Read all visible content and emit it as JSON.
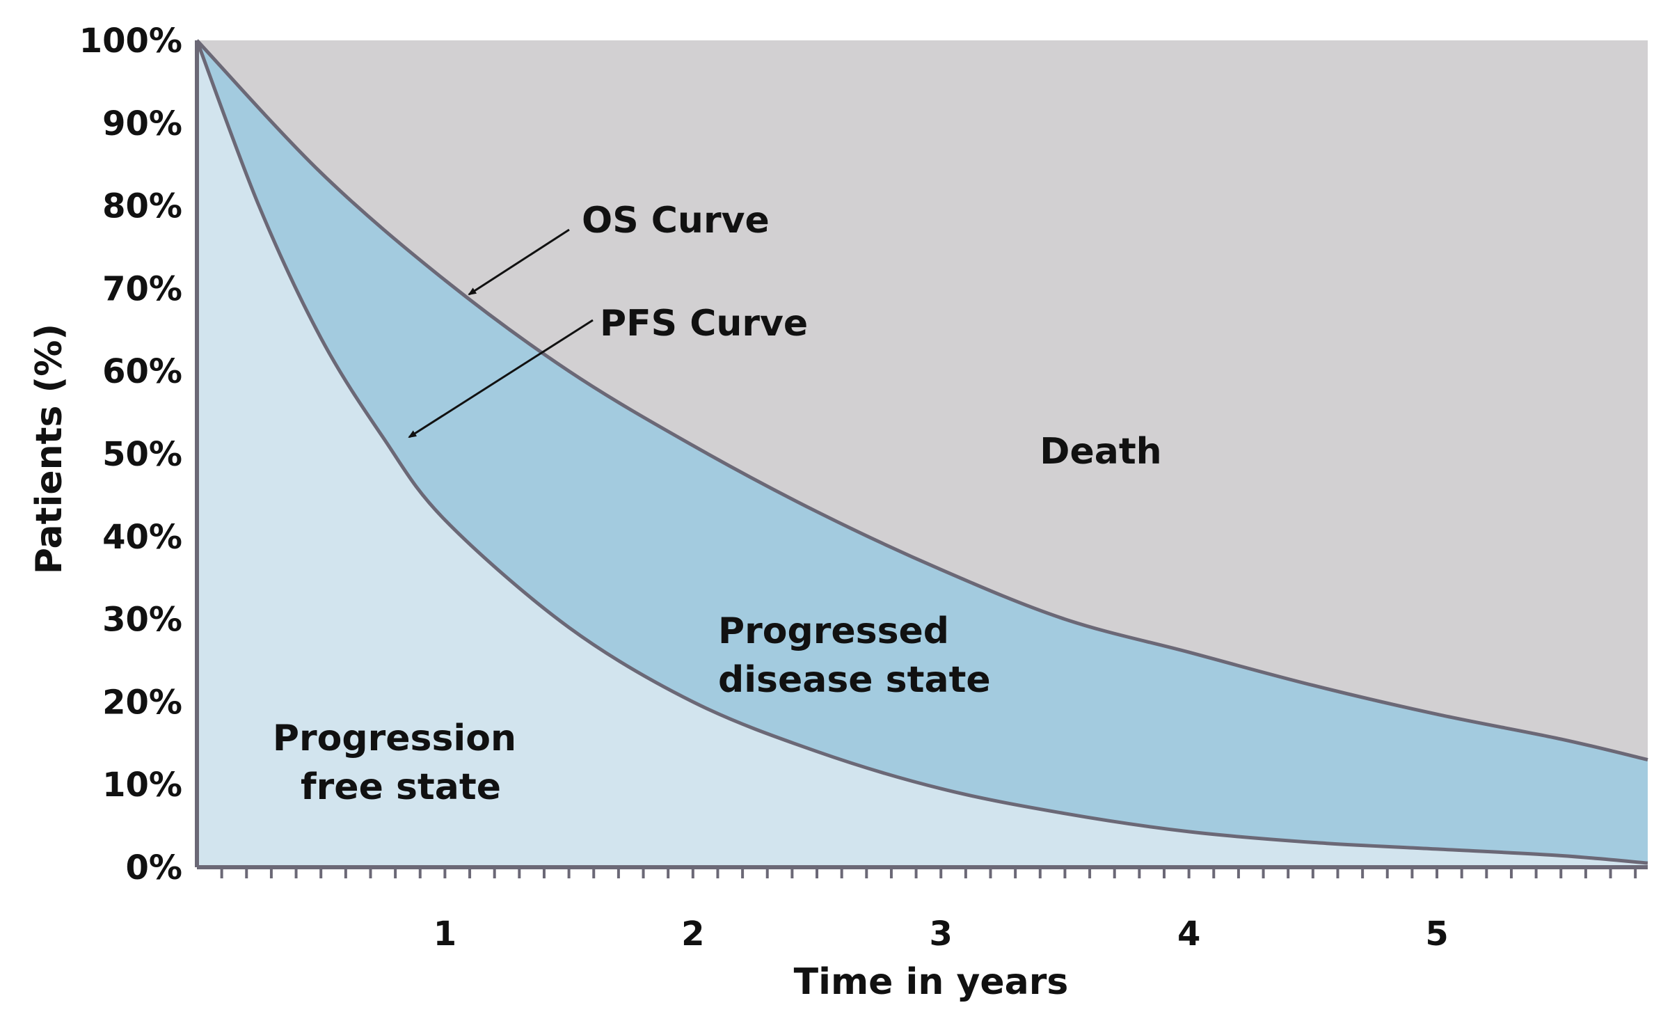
{
  "chart_data": {
    "type": "area",
    "xlabel": "Time in years",
    "ylabel": "Patients (%)",
    "xlim": [
      0,
      5.85
    ],
    "ylim": [
      0,
      100
    ],
    "x_ticks": [
      1,
      2,
      3,
      4,
      5
    ],
    "y_ticks": [
      "0%",
      "10%",
      "20%",
      "30%",
      "40%",
      "50%",
      "60%",
      "70%",
      "80%",
      "90%",
      "100%"
    ],
    "grid": false,
    "series": [
      {
        "name": "OS Curve",
        "x": [
          0,
          0.5,
          1,
          1.5,
          2,
          2.5,
          3,
          3.5,
          4,
          4.5,
          5,
          5.5,
          5.85
        ],
        "y": [
          100,
          84,
          71,
          60,
          51,
          43,
          36,
          30,
          26,
          22,
          18.5,
          15.5,
          13
        ]
      },
      {
        "name": "PFS Curve",
        "x": [
          0,
          0.25,
          0.5,
          0.75,
          1,
          1.5,
          2,
          2.5,
          3,
          3.5,
          4,
          4.5,
          5,
          5.5,
          5.85
        ],
        "y": [
          100,
          80,
          64,
          52,
          42,
          29,
          20,
          14,
          9.5,
          6.5,
          4.3,
          3,
          2.2,
          1.4,
          0.5
        ]
      }
    ],
    "regions": [
      {
        "label": "Death",
        "color": "#d2d0d2"
      },
      {
        "label": "Progressed disease state",
        "color": "#a3cbdf"
      },
      {
        "label": "Progression free state",
        "color": "#d2e4ee"
      }
    ],
    "annotations": [
      {
        "text": "OS Curve",
        "target_series": "OS Curve"
      },
      {
        "text": "PFS Curve",
        "target_series": "PFS Curve"
      }
    ],
    "curve_color": "#6b6876",
    "text_color": "#111111"
  }
}
